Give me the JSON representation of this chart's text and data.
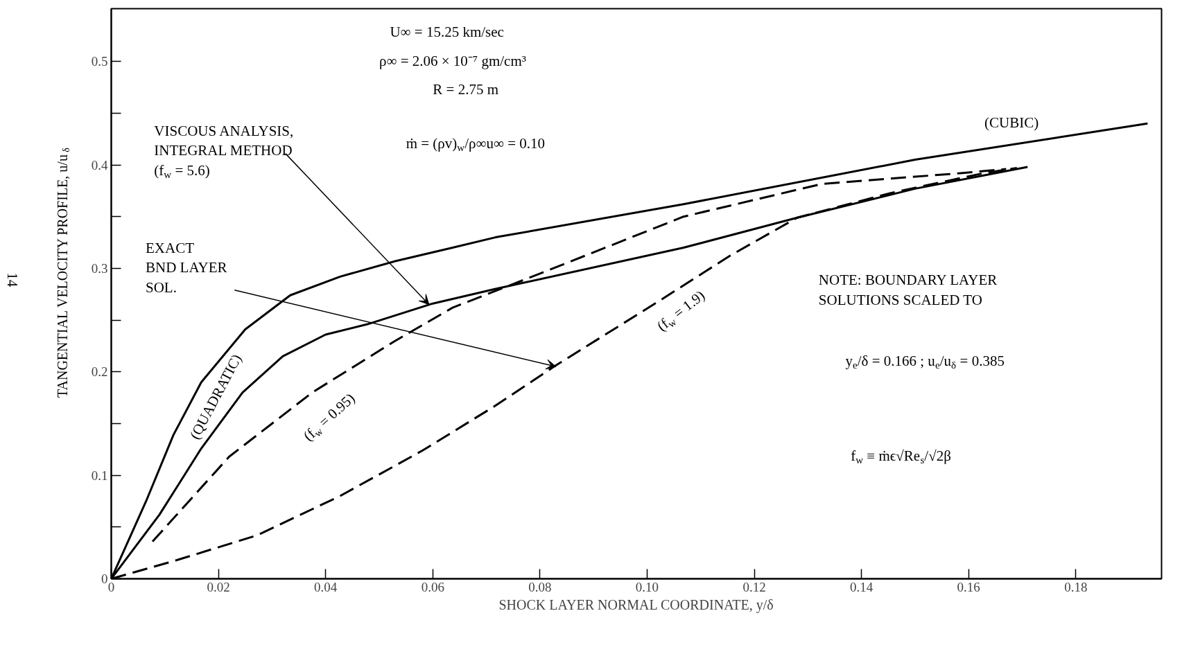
{
  "chart_data": {
    "type": "line",
    "xlabel": "SHOCK LAYER NORMAL COORDINATE, y/δ",
    "ylabel": "TANGENTIAL VELOCITY PROFILE, u/u$_{δ}$",
    "xlim": [
      0,
      0.196
    ],
    "ylim": [
      0,
      0.551
    ],
    "xticks": [
      0,
      {
        "value": 0.02,
        "label": "0.02"
      },
      {
        "value": 0.04,
        "label": "0.04"
      },
      {
        "value": 0.06,
        "label": "0.06"
      },
      {
        "value": 0.08,
        "label": "0.08"
      },
      {
        "value": 0.1,
        "label": "0.10"
      },
      {
        "value": 0.12,
        "label": "0.12"
      },
      {
        "value": 0.14,
        "label": "0.14"
      },
      {
        "value": 0.16,
        "label": "0.16"
      },
      {
        "value": 0.18,
        "label": "0.18"
      }
    ],
    "yticks": [
      0,
      {
        "value": 0.05,
        "label": null
      },
      0.1,
      {
        "value": 0.15,
        "label": null
      },
      0.2,
      {
        "value": 0.25,
        "label": null
      },
      0.3,
      {
        "value": 0.35,
        "label": null
      },
      0.4,
      {
        "value": 0.45,
        "label": null
      },
      0.5
    ],
    "grid": false,
    "marker": "none",
    "series": [
      {
        "color": "#000000",
        "line_style": "solid",
        "x": [
          0,
          0.0065,
          0.0116,
          0.0168,
          0.025,
          0.0334,
          0.0427,
          0.053,
          0.0637,
          0.0717,
          0.1068,
          0.15,
          0.1934
        ],
        "values": [
          0,
          0.075,
          0.139,
          0.19,
          0.241,
          0.274,
          0.292,
          0.307,
          0.32,
          0.33,
          0.362,
          0.405,
          0.44
        ]
      },
      {
        "color": "#000000",
        "line_style": "solid",
        "x": [
          0,
          0.009,
          0.0168,
          0.0245,
          0.032,
          0.04,
          0.0478,
          0.06,
          0.0716,
          0.1068,
          0.128,
          0.15,
          0.171
        ],
        "values": [
          0,
          0.062,
          0.126,
          0.18,
          0.215,
          0.236,
          0.246,
          0.266,
          0.28,
          0.32,
          0.349,
          0.377,
          0.398
        ]
      },
      {
        "color": "#000000",
        "line_style": "dashed",
        "x": [
          0.0077,
          0.022,
          0.0375,
          0.053,
          0.0637,
          0.081,
          0.1068,
          0.1326,
          0.1585,
          0.167
        ],
        "values": [
          0.036,
          0.118,
          0.18,
          0.23,
          0.262,
          0.297,
          0.35,
          0.3816,
          0.392,
          0.396
        ]
      },
      {
        "color": "#000000",
        "line_style": "dashed",
        "x": [
          0,
          0.0116,
          0.0272,
          0.0427,
          0.0581,
          0.0716,
          0.0826,
          0.1024,
          0.1154,
          0.128,
          0.1456,
          0.1628,
          0.169
        ],
        "values": [
          0,
          0.017,
          0.042,
          0.08,
          0.124,
          0.167,
          0.205,
          0.269,
          0.312,
          0.349,
          0.373,
          0.392,
          0.397
        ]
      }
    ],
    "annotations": [
      {
        "text": "VISCOUS ANALYSIS,\nINTEGRAL METHOD\n(f$_{w}$ = 5.6)",
        "x": 0.0593,
        "y": 0.265
      },
      {
        "text": "EXACT\nBND LAYER\nSOL.",
        "x": 0.083,
        "y": 0.205
      },
      "(CUBIC)",
      "(QUADRATIC)",
      "(f$_{w}$ = 0.95)",
      "(f$_{w}$ = 1.9)",
      "U∞ = 15.25 km/sec",
      "ρ∞ = 2.06 × 10⁻⁷ gm/cm³",
      "R = 2.75 m",
      "ṁ = (ρv)$_{w}$/ρ∞u∞ = 0.10",
      "NOTE: BOUNDARY LAYER\nSOLUTIONS SCALED TO",
      "y$_{e}$/δ = 0.166 ; u$_{e}$/u$_{δ}$ = 0.385",
      "f$_{w}$ ≡ ṁϵ√Re$_{s}$/√2β",
      "14"
    ]
  }
}
